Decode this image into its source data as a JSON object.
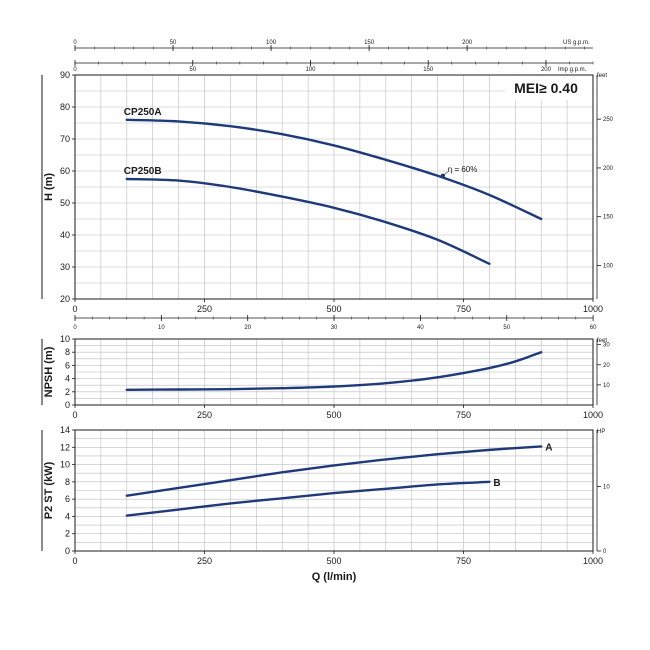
{
  "chart_data": [
    {
      "type": "line",
      "id": "head",
      "ylabel": "H (m)",
      "right_unit": "feet",
      "badge": "MEI≥ 0.40",
      "xlim": [
        0,
        1000
      ],
      "ylim": [
        20,
        90
      ],
      "x_ticks": [
        0,
        250,
        500,
        750,
        1000
      ],
      "x_tick_labels": [
        "0",
        "250",
        "500",
        "750",
        "1000"
      ],
      "y_ticks": [
        20,
        30,
        40,
        50,
        60,
        70,
        80,
        90
      ],
      "y_tick_labels": [
        "20",
        "30",
        "40",
        "50",
        "60",
        "70",
        "80",
        "90"
      ],
      "right_ticks": [
        {
          "value": 100,
          "label": "100"
        },
        {
          "value": 150,
          "label": "150"
        },
        {
          "value": 200,
          "label": "200"
        },
        {
          "value": 250,
          "label": "250"
        }
      ],
      "top_axes": [
        {
          "unit": "US g.p.m.",
          "ticks": [
            {
              "value": 0,
              "label": "0"
            },
            {
              "value": 50,
              "label": "50"
            },
            {
              "value": 100,
              "label": "100"
            },
            {
              "value": 150,
              "label": "150"
            },
            {
              "value": 200,
              "label": "200"
            }
          ]
        },
        {
          "unit": "Imp g.p.m.",
          "ticks": [
            {
              "value": 0,
              "label": "0"
            },
            {
              "value": 50,
              "label": "50"
            },
            {
              "value": 100,
              "label": "100"
            },
            {
              "value": 150,
              "label": "150"
            },
            {
              "value": 200,
              "label": "200"
            }
          ]
        }
      ],
      "series": [
        {
          "name": "CP250A",
          "x": [
            100,
            200,
            300,
            400,
            500,
            600,
            700,
            800,
            900
          ],
          "y": [
            76,
            75.5,
            74,
            71.5,
            68,
            63.5,
            58.5,
            52.5,
            45
          ]
        },
        {
          "name": "CP250B",
          "x": [
            100,
            200,
            300,
            400,
            500,
            600,
            700,
            800
          ],
          "y": [
            57.5,
            57,
            55,
            52,
            48.5,
            44,
            38.5,
            31
          ]
        }
      ],
      "annotations": [
        {
          "text": "η = 60%",
          "x": 710,
          "y": 58.5
        }
      ],
      "grid": true
    },
    {
      "type": "line",
      "id": "npsh",
      "ylabel": "NPSH (m)",
      "right_unit": "feet",
      "xlim": [
        0,
        1000
      ],
      "ylim": [
        0,
        10
      ],
      "x_ticks": [
        0,
        250,
        500,
        750,
        1000
      ],
      "x_tick_labels": [
        "0",
        "250",
        "500",
        "750",
        "1000"
      ],
      "y_ticks": [
        0,
        2,
        4,
        6,
        8,
        10
      ],
      "y_tick_labels": [
        "0",
        "2",
        "4",
        "6",
        "8",
        "10"
      ],
      "right_ticks": [
        {
          "value": 10,
          "label": "10"
        },
        {
          "value": 20,
          "label": "20"
        },
        {
          "value": 30,
          "label": "30"
        }
      ],
      "top_axes": [
        {
          "unit": "",
          "ticks": [
            {
              "value": 0,
              "label": "0"
            },
            {
              "value": 10,
              "label": "10"
            },
            {
              "value": 20,
              "label": "20"
            },
            {
              "value": 30,
              "label": "30"
            },
            {
              "value": 40,
              "label": "40"
            },
            {
              "value": 50,
              "label": "50"
            },
            {
              "value": 60,
              "label": "60"
            }
          ]
        }
      ],
      "series": [
        {
          "name": "",
          "x": [
            100,
            200,
            300,
            400,
            500,
            600,
            700,
            800,
            850,
            900
          ],
          "y": [
            2.3,
            2.35,
            2.4,
            2.55,
            2.8,
            3.3,
            4.2,
            5.6,
            6.6,
            8.0
          ]
        }
      ],
      "grid": true
    },
    {
      "type": "line",
      "id": "power",
      "ylabel": "P2 ST (kW)",
      "right_unit": "HP",
      "xlabel": "Q (l/min)",
      "xlim": [
        0,
        1000
      ],
      "ylim": [
        0,
        14
      ],
      "x_ticks": [
        0,
        250,
        500,
        750,
        1000
      ],
      "x_tick_labels": [
        "0",
        "250",
        "500",
        "750",
        "1000"
      ],
      "y_ticks": [
        0,
        2,
        4,
        6,
        8,
        10,
        12,
        14
      ],
      "y_tick_labels": [
        "0",
        "2",
        "4",
        "6",
        "8",
        "10",
        "12",
        "14"
      ],
      "right_ticks": [
        {
          "value": 0,
          "label": "0"
        },
        {
          "value": 10,
          "label": "10"
        }
      ],
      "series": [
        {
          "name": "A",
          "x": [
            100,
            200,
            300,
            400,
            500,
            600,
            700,
            800,
            900
          ],
          "y": [
            6.4,
            7.3,
            8.2,
            9.1,
            9.9,
            10.6,
            11.2,
            11.7,
            12.1
          ]
        },
        {
          "name": "B",
          "x": [
            100,
            200,
            300,
            400,
            500,
            600,
            700,
            800
          ],
          "y": [
            4.1,
            4.8,
            5.5,
            6.1,
            6.7,
            7.2,
            7.7,
            8.0
          ]
        }
      ],
      "grid": true
    }
  ],
  "colors": {
    "curve": "#1f3a7a",
    "grid": "#bdbdbd",
    "axis": "#1a1a1a"
  }
}
